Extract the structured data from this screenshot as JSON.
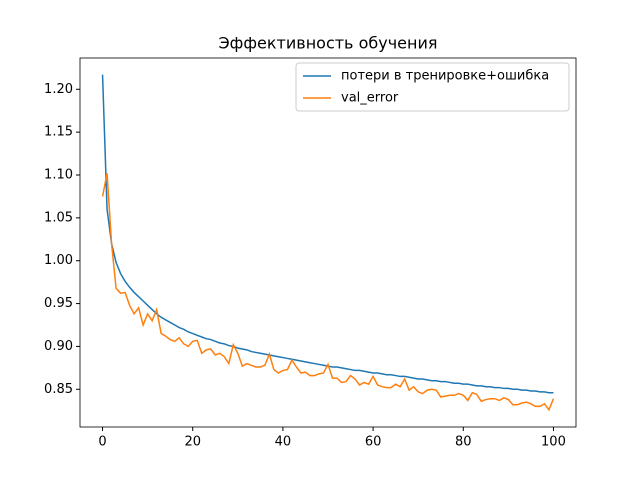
{
  "chart_data": {
    "type": "line",
    "title": "Эффективность обучения",
    "x": [
      0,
      1,
      2,
      3,
      4,
      5,
      6,
      7,
      8,
      9,
      10,
      11,
      12,
      13,
      14,
      15,
      16,
      17,
      18,
      19,
      20,
      21,
      22,
      23,
      24,
      25,
      26,
      27,
      28,
      29,
      30,
      31,
      32,
      33,
      34,
      35,
      36,
      37,
      38,
      39,
      40,
      41,
      42,
      43,
      44,
      45,
      46,
      47,
      48,
      49,
      50,
      51,
      52,
      53,
      54,
      55,
      56,
      57,
      58,
      59,
      60,
      61,
      62,
      63,
      64,
      65,
      66,
      67,
      68,
      69,
      70,
      71,
      72,
      73,
      74,
      75,
      76,
      77,
      78,
      79,
      80,
      81,
      82,
      83,
      84,
      85,
      86,
      87,
      88,
      89,
      90,
      91,
      92,
      93,
      94,
      95,
      96,
      97,
      98,
      99,
      100
    ],
    "series": [
      {
        "name": "потери в тренировке+ошибка",
        "color": "#1f77b4",
        "values": [
          1.217,
          1.06,
          1.02,
          0.998,
          0.985,
          0.976,
          0.969,
          0.963,
          0.958,
          0.953,
          0.948,
          0.943,
          0.938,
          0.934,
          0.931,
          0.928,
          0.925,
          0.922,
          0.92,
          0.917,
          0.915,
          0.913,
          0.911,
          0.909,
          0.908,
          0.906,
          0.904,
          0.903,
          0.901,
          0.9,
          0.898,
          0.897,
          0.896,
          0.894,
          0.893,
          0.892,
          0.891,
          0.89,
          0.889,
          0.888,
          0.887,
          0.886,
          0.885,
          0.884,
          0.883,
          0.882,
          0.881,
          0.88,
          0.879,
          0.878,
          0.877,
          0.876,
          0.876,
          0.875,
          0.874,
          0.873,
          0.872,
          0.872,
          0.871,
          0.87,
          0.869,
          0.869,
          0.868,
          0.867,
          0.867,
          0.866,
          0.865,
          0.865,
          0.864,
          0.863,
          0.862,
          0.862,
          0.861,
          0.86,
          0.86,
          0.859,
          0.859,
          0.858,
          0.857,
          0.857,
          0.856,
          0.856,
          0.855,
          0.854,
          0.854,
          0.853,
          0.853,
          0.852,
          0.852,
          0.851,
          0.851,
          0.85,
          0.85,
          0.849,
          0.849,
          0.848,
          0.848,
          0.847,
          0.847,
          0.846,
          0.846
        ]
      },
      {
        "name": "val_error",
        "color": "#ff7f0e",
        "values": [
          1.075,
          1.102,
          1.02,
          0.968,
          0.962,
          0.963,
          0.948,
          0.938,
          0.945,
          0.925,
          0.938,
          0.93,
          0.943,
          0.915,
          0.912,
          0.908,
          0.906,
          0.91,
          0.903,
          0.9,
          0.906,
          0.907,
          0.892,
          0.896,
          0.897,
          0.89,
          0.892,
          0.888,
          0.88,
          0.902,
          0.892,
          0.877,
          0.88,
          0.878,
          0.876,
          0.876,
          0.878,
          0.891,
          0.873,
          0.869,
          0.872,
          0.873,
          0.884,
          0.876,
          0.869,
          0.87,
          0.866,
          0.866,
          0.868,
          0.869,
          0.879,
          0.863,
          0.863,
          0.858,
          0.859,
          0.866,
          0.862,
          0.855,
          0.858,
          0.856,
          0.865,
          0.855,
          0.853,
          0.852,
          0.852,
          0.856,
          0.853,
          0.862,
          0.849,
          0.853,
          0.847,
          0.845,
          0.849,
          0.85,
          0.849,
          0.841,
          0.842,
          0.843,
          0.843,
          0.845,
          0.843,
          0.837,
          0.846,
          0.844,
          0.836,
          0.838,
          0.839,
          0.839,
          0.837,
          0.84,
          0.838,
          0.832,
          0.832,
          0.834,
          0.835,
          0.833,
          0.83,
          0.83,
          0.833,
          0.826,
          0.839
        ]
      }
    ],
    "xlim": [
      -5,
      105
    ],
    "xticks": [
      0,
      20,
      40,
      60,
      80,
      100
    ],
    "ylim": [
      0.806,
      1.2365
    ],
    "yticks": [
      0.85,
      {
        "value": 0.9,
        "label": "0.90"
      },
      0.95,
      {
        "value": 1.0,
        "label": "1.00"
      },
      1.05,
      {
        "value": 1.1,
        "label": "1.10"
      },
      1.15,
      {
        "value": 1.2,
        "label": "1.20"
      }
    ],
    "legend": "upper right"
  }
}
